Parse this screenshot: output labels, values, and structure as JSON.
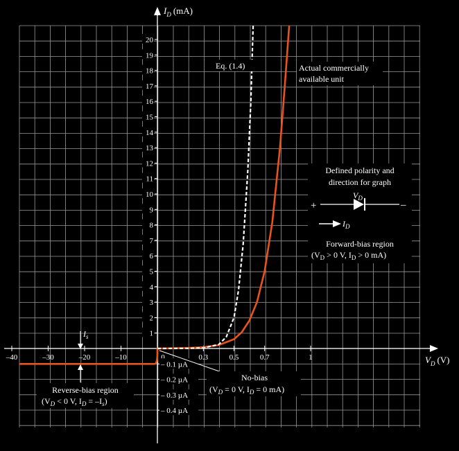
{
  "chart_data": {
    "type": "line",
    "y_axis_label": "I",
    "y_axis_sub": "D",
    "y_axis_unit": "(mA)",
    "x_axis_label": "V",
    "x_axis_sub": "D",
    "x_axis_unit": "(V)",
    "forward_y_ticks": [
      "1",
      "2",
      "3",
      "4",
      "5",
      "6",
      "7",
      "8",
      "9",
      "10",
      "11",
      "12",
      "13",
      "14",
      "15",
      "16",
      "17",
      "18",
      "19",
      "20"
    ],
    "forward_x_ticks": [
      "0",
      "0.3",
      "0.5",
      "0.7",
      "1"
    ],
    "reverse_x_ticks": [
      "–40",
      "–30",
      "–20",
      "–10"
    ],
    "reverse_current_ticks": [
      "– 0.1 µA",
      "– 0.2 µA",
      "– 0.3 µA",
      "– 0.4 µA"
    ],
    "ylim_mA": [
      0,
      20
    ],
    "xlim_forward_V": [
      0,
      1.0
    ],
    "xlim_reverse_V": [
      -40,
      0
    ],
    "series": [
      {
        "name": "Actual commercially available unit",
        "color": "#e8531e",
        "style": "solid",
        "forward": [
          [
            0,
            0
          ],
          [
            0.1,
            0.01
          ],
          [
            0.2,
            0.03
          ],
          [
            0.3,
            0.08
          ],
          [
            0.4,
            0.22
          ],
          [
            0.5,
            0.6
          ],
          [
            0.55,
            1.05
          ],
          [
            0.6,
            1.8
          ],
          [
            0.65,
            3.0
          ],
          [
            0.7,
            5.0
          ],
          [
            0.75,
            8.2
          ],
          [
            0.8,
            13.0
          ],
          [
            0.83,
            16.8
          ],
          [
            0.86,
            21.5
          ]
        ],
        "reverse_current_uA": -0.1
      },
      {
        "name": "Eq. (1.4)",
        "color": "#ffffff",
        "style": "dashed",
        "forward": [
          [
            0,
            0
          ],
          [
            0.2,
            0.01
          ],
          [
            0.3,
            0.04
          ],
          [
            0.4,
            0.25
          ],
          [
            0.45,
            0.75
          ],
          [
            0.5,
            2.0
          ],
          [
            0.53,
            3.8
          ],
          [
            0.56,
            6.8
          ],
          [
            0.59,
            11.5
          ],
          [
            0.61,
            16.0
          ],
          [
            0.625,
            21.5
          ]
        ]
      }
    ],
    "annotations": {
      "eq_label": "Eq. (1.4)",
      "actual_label_1": "Actual commercially",
      "actual_label_2": "available unit",
      "is_label": "I",
      "is_sub": "s",
      "polarity_title_1": "Defined polarity and",
      "polarity_title_2": "direction for graph",
      "plus": "+",
      "minus": "–",
      "vd_label": "V",
      "vd_sub": "D",
      "id_label": "I",
      "id_sub": "D",
      "forward_region_1": "Forward-bias region",
      "forward_region_2": "(V",
      "forward_region_3": " > 0 V,  I",
      "forward_region_4": " > 0  mA)",
      "reverse_region_1": "Reverse-bias region",
      "reverse_region_2": "(V",
      "reverse_region_3": " < 0 V, I",
      "reverse_region_4": " = –I",
      "reverse_region_5": ")",
      "no_bias_1": "No-bias",
      "no_bias_2": "(V",
      "no_bias_3": " = 0 V, I",
      "no_bias_4": " = 0 mA)",
      "sub_D": "D",
      "sub_s": "s"
    },
    "grid": true,
    "background": "#000000",
    "grid_color": "#9a9a9a"
  }
}
